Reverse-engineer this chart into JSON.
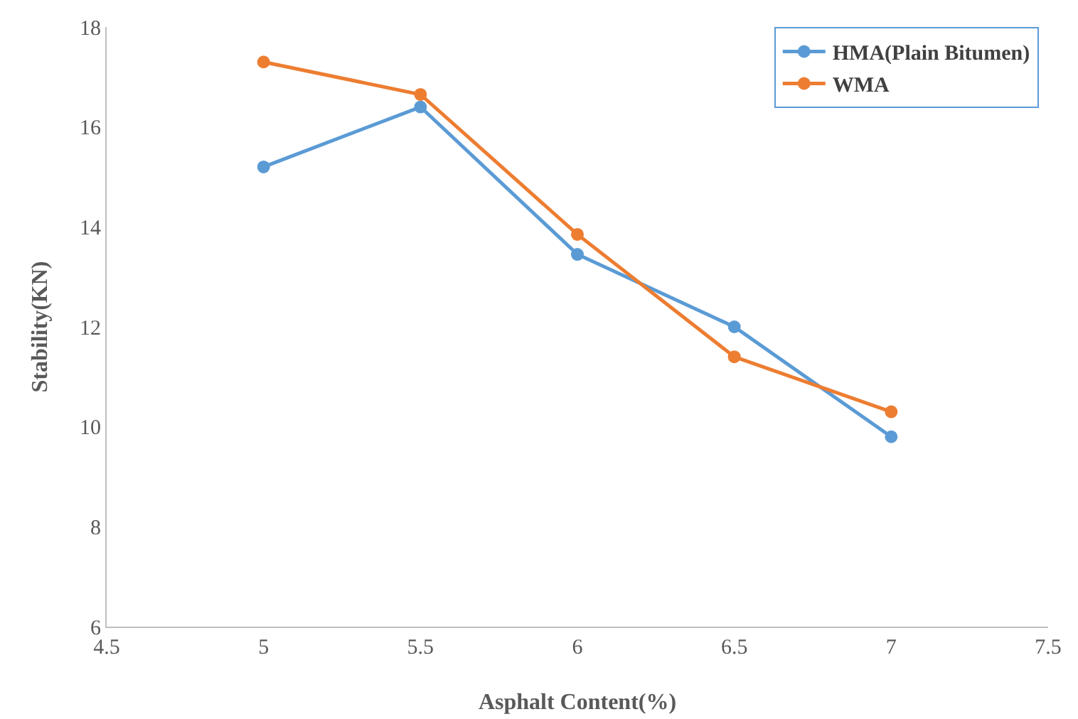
{
  "chart_data": {
    "type": "line",
    "xlabel": "Asphalt Content(%)",
    "ylabel": "Stability(KN)",
    "x": [
      5,
      5.5,
      6,
      6.5,
      7
    ],
    "series": [
      {
        "name": "HMA(Plain Bitumen)",
        "color": "#5b9bd5",
        "values": [
          15.2,
          16.4,
          13.45,
          12.0,
          9.8
        ]
      },
      {
        "name": "WMA",
        "color": "#ed7d31",
        "values": [
          17.3,
          16.65,
          13.85,
          11.4,
          10.3
        ]
      }
    ],
    "xlim": [
      4.5,
      7.5
    ],
    "xticks": [
      4.5,
      5,
      5.5,
      6,
      6.5,
      7,
      7.5
    ],
    "ylim": [
      6,
      18
    ],
    "yticks": [
      6,
      8,
      10,
      12,
      14,
      16,
      18
    ],
    "grid": false,
    "legend": "top right",
    "marker": "circle",
    "line_style": "solid"
  }
}
